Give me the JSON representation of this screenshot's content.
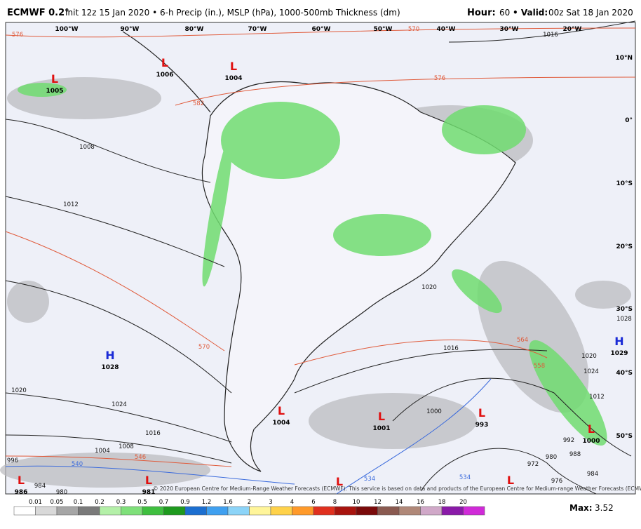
{
  "header": {
    "model": "ECMWF 0.2°",
    "description": "Init 12z 15 Jan 2020 • 6-h Precip (in.), MSLP (hPa), 1000-500mb Thickness (dm)",
    "hour_label": "Hour:",
    "hour": "60",
    "valid_label": "• Valid:",
    "valid": "00z Sat 18 Jan 2020"
  },
  "map": {
    "longitudes": [
      "100°W",
      "90°W",
      "80°W",
      "70°W",
      "60°W",
      "50°W",
      "40°W",
      "30°W",
      "20°W"
    ],
    "latitudes": [
      "10°N",
      "0°",
      "10°S",
      "20°S",
      "30°S",
      "40°S",
      "50°S"
    ],
    "pressure_systems": [
      {
        "type": "L",
        "value": 1006
      },
      {
        "type": "L",
        "value": 1004
      },
      {
        "type": "L",
        "value": 1005
      },
      {
        "type": "H",
        "value": 1028
      },
      {
        "type": "L",
        "value": 1004
      },
      {
        "type": "L",
        "value": 1001
      },
      {
        "type": "L",
        "value": 993
      },
      {
        "type": "L",
        "value": 1000
      },
      {
        "type": "H",
        "value": 1029
      },
      {
        "type": "L",
        "value": 986
      },
      {
        "type": "L",
        "value": 981
      }
    ],
    "unlabeled_lows": [
      "L",
      "L"
    ],
    "isobar_labels": [
      1016,
      1008,
      1012,
      1020,
      1024,
      1016,
      1008,
      1004,
      1016,
      1020,
      1000,
      992,
      988,
      984,
      980,
      976,
      972,
      1020,
      1024,
      1012,
      1028,
      996,
      984,
      980
    ],
    "thickness_labels": [
      576,
      570,
      576,
      582,
      570,
      564,
      558,
      546,
      540,
      534,
      534
    ],
    "credit": "© 2020 European Centre for Medium-Range Weather Forecasts (ECMWF). This service is based on data and products of the European Centre for Medium-range Weather Forecasts (ECMWF)."
  },
  "colorbar": {
    "labels": [
      "0.01",
      "0.05",
      "0.1",
      "0.2",
      "0.3",
      "0.5",
      "0.7",
      "0.9",
      "1.2",
      "1.6",
      "2",
      "3",
      "4",
      "6",
      "8",
      "10",
      "12",
      "14",
      "16",
      "18",
      "20"
    ],
    "max_label": "Max:",
    "max": "3.52"
  }
}
